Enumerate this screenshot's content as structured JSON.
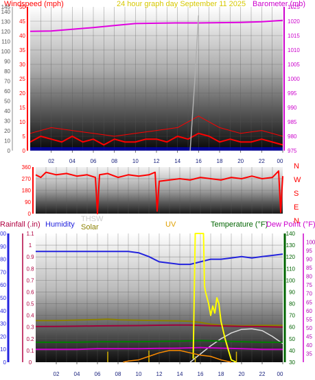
{
  "header": {
    "left": "Windspeed (mph)",
    "center": "24 hour graph day   September 11 2025",
    "right": "Barometer (mb)"
  },
  "colors": {
    "windspeed": "#ff0000",
    "gust": "#ff0000",
    "avgwind": "#0000cc",
    "barometer": "#e000e0",
    "direction": "#ff0000",
    "rainfall": "#b00040",
    "humidity": "#2222dd",
    "solar": "#8b8000",
    "thsw": "#b0b0b0",
    "uv": "#ffff00",
    "temperature": "#006400",
    "dewpoint": "#cc00cc"
  },
  "x_ticks": [
    "02",
    "04",
    "06",
    "08",
    "10",
    "12",
    "14",
    "16",
    "18",
    "20",
    "22",
    "00"
  ],
  "panel_lower_labels": {
    "rainfall": "Rainfall (.in)",
    "humidity": "Humidity",
    "thsw": "THSW",
    "solar": "Solar",
    "uv": "UV",
    "temperature": "Temperature (°F)",
    "dewpoint": "Dew Point (°F)"
  },
  "chart_data": [
    {
      "type": "line",
      "title": "24 hour graph day   September 11 2025",
      "x_unit": "hour",
      "x_range": [
        0,
        24
      ],
      "ylabel_left": "Windspeed (mph)",
      "ylim_left": [
        0,
        50
      ],
      "yticks_left": [
        0,
        5,
        10,
        15,
        20,
        25,
        30,
        35,
        40,
        45,
        50
      ],
      "ylabel_left_outer": "",
      "ylim_left_outer": [
        0,
        145
      ],
      "yticks_left_outer": [
        0,
        10,
        20,
        30,
        40,
        50,
        60,
        70,
        80,
        90,
        100,
        110,
        120,
        130,
        140,
        145
      ],
      "ylabel_right": "Barometer (mb)",
      "ylim_right": [
        975,
        1025
      ],
      "yticks_right": [
        975,
        980,
        985,
        990,
        995,
        1000,
        1005,
        1010,
        1015,
        1020,
        1025
      ],
      "series": [
        {
          "name": "Barometer (mb)",
          "axis": "right",
          "x": [
            0,
            2,
            4,
            6,
            8,
            10,
            12,
            14,
            16,
            18,
            20,
            22,
            24
          ],
          "y": [
            1016.5,
            1016.6,
            1017.2,
            1017.8,
            1018.5,
            1019.2,
            1019.3,
            1019.4,
            1019.4,
            1019.5,
            1019.6,
            1019.8,
            1020.3
          ]
        },
        {
          "name": "Windspeed",
          "axis": "left",
          "x": [
            0,
            1,
            2,
            3,
            4,
            5,
            6,
            7,
            8,
            9,
            10,
            11,
            12,
            13,
            14,
            15,
            16,
            17,
            18,
            19,
            20,
            21,
            22,
            23,
            24
          ],
          "y": [
            3,
            5,
            4,
            3,
            5,
            3,
            4,
            2,
            4,
            3,
            3,
            4,
            4,
            3,
            5,
            4,
            6,
            5,
            3,
            4,
            3,
            3,
            4,
            3,
            2
          ]
        },
        {
          "name": "Gust",
          "axis": "left",
          "x": [
            0,
            2,
            4,
            6,
            8,
            10,
            12,
            14,
            16,
            18,
            20,
            22,
            24
          ],
          "y": [
            6,
            8,
            7,
            6,
            5,
            6,
            7,
            8,
            12,
            8,
            6,
            7,
            5
          ]
        },
        {
          "name": "THSW trace",
          "axis": "left",
          "x": [
            15.2,
            15.6,
            16.0
          ],
          "y": [
            0,
            22,
            47
          ]
        }
      ]
    },
    {
      "type": "line",
      "title": "",
      "x_unit": "hour",
      "x_range": [
        0,
        24
      ],
      "ylabel_left": "",
      "ylim": [
        0,
        360
      ],
      "yticks": [
        0,
        90,
        180,
        270,
        360
      ],
      "right_labels": [
        "N",
        "W",
        "S",
        "E",
        "N"
      ],
      "series": [
        {
          "name": "Wind direction",
          "x": [
            0,
            0.5,
            1,
            2,
            3,
            4,
            5,
            5.8,
            6,
            6.2,
            7,
            8,
            9,
            10,
            11,
            11.6,
            11.8,
            12,
            13,
            14,
            15,
            16,
            17,
            18,
            19,
            20,
            21,
            22,
            23,
            23.6,
            23.8,
            24
          ],
          "y": [
            300,
            280,
            320,
            300,
            310,
            290,
            300,
            280,
            0,
            300,
            310,
            280,
            300,
            290,
            300,
            320,
            20,
            250,
            260,
            270,
            260,
            280,
            270,
            260,
            280,
            270,
            290,
            270,
            280,
            330,
            10,
            290
          ]
        }
      ]
    },
    {
      "type": "line",
      "title": "",
      "x_unit": "hour",
      "x_range": [
        0,
        24
      ],
      "ylabel_rain": "Rainfall (.in)",
      "ylim_rain": [
        0,
        1.1
      ],
      "yticks_rain": [
        0,
        0.1,
        0.2,
        0.3,
        0.4,
        0.5,
        0.6,
        0.7,
        0.8,
        0.9,
        1,
        1.1
      ],
      "ylabel_humidity": "Humidity",
      "ylim_humidity": [
        0,
        100
      ],
      "yticks_humidity": [
        0,
        10,
        20,
        30,
        40,
        50,
        60,
        70,
        80,
        90,
        100
      ],
      "ylabel_temp": "Temperature (°F)",
      "ylim_temp": [
        30,
        140
      ],
      "yticks_temp": [
        30,
        40,
        50,
        60,
        70,
        80,
        90,
        100,
        110,
        120,
        130,
        140
      ],
      "ylabel_dew": "Dew Point (°F)",
      "ylim_dew": [
        30,
        105
      ],
      "yticks_dew": [
        35,
        40,
        45,
        50,
        55,
        60,
        65,
        70,
        75,
        80,
        85,
        90,
        95,
        100
      ],
      "series": [
        {
          "name": "Humidity",
          "axis": "humidity",
          "x": [
            0,
            2,
            4,
            6,
            8,
            9,
            10,
            11,
            12,
            13,
            14,
            15,
            16,
            17,
            18,
            19,
            20,
            21,
            22,
            23,
            24
          ],
          "y": [
            86,
            86,
            86,
            86,
            86,
            86,
            85,
            82,
            78,
            77,
            76,
            76,
            78,
            80,
            80,
            81,
            82,
            81,
            82,
            83,
            84
          ]
        },
        {
          "name": "Temperature (°F)",
          "axis": "temp",
          "x": [
            0,
            2,
            4,
            6,
            7,
            8,
            10,
            12,
            14,
            15,
            16,
            17,
            18,
            20,
            22,
            24
          ],
          "y": [
            65.5,
            65.6,
            66,
            66.4,
            66.8,
            66.2,
            65.8,
            65.5,
            65.3,
            65,
            64,
            62.5,
            61.8,
            61.2,
            61.5,
            61.4
          ]
        },
        {
          "name": "Dew Point (°F)",
          "axis": "temp",
          "x": [
            0,
            2,
            4,
            6,
            8,
            10,
            12,
            14,
            15,
            16,
            18,
            20,
            22,
            24
          ],
          "y": [
            60.5,
            60.6,
            60.8,
            61,
            61.2,
            61.3,
            61.6,
            61.8,
            61.8,
            61.5,
            61,
            60.6,
            60.4,
            60
          ]
        },
        {
          "name": "THSW",
          "axis": "temp",
          "x": [
            15,
            16,
            17,
            18,
            19,
            20,
            21,
            22,
            23,
            24
          ],
          "y": [
            30,
            37,
            44,
            50,
            55,
            58,
            58.5,
            57,
            52,
            46
          ]
        },
        {
          "name": "Solar (green)",
          "axis": "temp",
          "x": [
            0,
            2,
            4,
            6,
            8,
            10,
            12,
            14,
            16,
            18,
            20,
            22,
            24
          ],
          "y": [
            47,
            47,
            47,
            47.5,
            47.5,
            47.5,
            47.8,
            48,
            48.5,
            48,
            47.5,
            47,
            47
          ]
        },
        {
          "name": "UV",
          "axis": "temp",
          "x": [
            15.3,
            15.5,
            16.3,
            16.4,
            16.5,
            16.8,
            17.0,
            17.2,
            17.4,
            17.6,
            17.8,
            18.0,
            18.4,
            19.0,
            19.5
          ],
          "y": [
            33,
            140,
            140,
            95,
            90,
            80,
            70,
            78,
            72,
            85,
            80,
            65,
            50,
            32,
            30
          ]
        },
        {
          "name": "Rainfall bars",
          "axis": "rain",
          "x": [
            7,
            11,
            15.5,
            19.5
          ],
          "y": [
            0.09,
            0.1,
            0.05,
            0.09
          ]
        }
      ]
    }
  ]
}
